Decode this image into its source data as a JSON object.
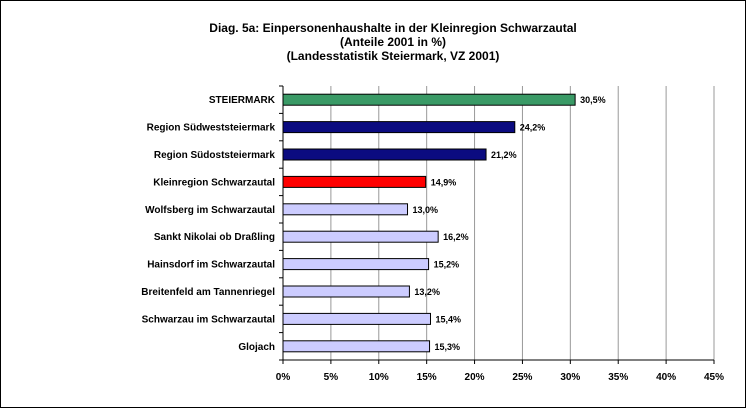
{
  "chart_data": {
    "type": "bar",
    "orientation": "horizontal",
    "title_lines": [
      "Diag. 5a: Einpersonenhaushalte  in der Kleinregion Schwarzautal",
      "(Anteile 2001 in %)",
      "(Landesstatistik  Steiermark,  VZ 2001)"
    ],
    "categories": [
      "STEIERMARK",
      "Region Südweststeiermark",
      "Region Südoststeiermark",
      "Kleinregion Schwarzautal",
      "Wolfsberg im Schwarzautal",
      "Sankt Nikolai ob Draßling",
      "Hainsdorf im Schwarzautal",
      "Breitenfeld am Tannenriegel",
      "Schwarzau im Schwarzautal",
      "Glojach"
    ],
    "values": [
      30.5,
      24.2,
      21.2,
      14.9,
      13.0,
      16.2,
      15.2,
      13.2,
      15.4,
      15.3
    ],
    "value_labels": [
      "30,5%",
      "24,2%",
      "21,2%",
      "14,9%",
      "13,0%",
      "16,2%",
      "15,2%",
      "13,2%",
      "15,4%",
      "15,3%"
    ],
    "bar_colors": [
      "#3a9a66",
      "#0b0b80",
      "#0b0b80",
      "#ff0000",
      "#ccccff",
      "#ccccff",
      "#ccccff",
      "#ccccff",
      "#ccccff",
      "#ccccff"
    ],
    "xlim": [
      0,
      45
    ],
    "xticks": [
      0,
      5,
      10,
      15,
      20,
      25,
      30,
      35,
      40,
      45
    ],
    "xtick_labels": [
      "0%",
      "5%",
      "10%",
      "15%",
      "20%",
      "25%",
      "30%",
      "35%",
      "40%",
      "45%"
    ],
    "grid": true,
    "legend": "none"
  }
}
